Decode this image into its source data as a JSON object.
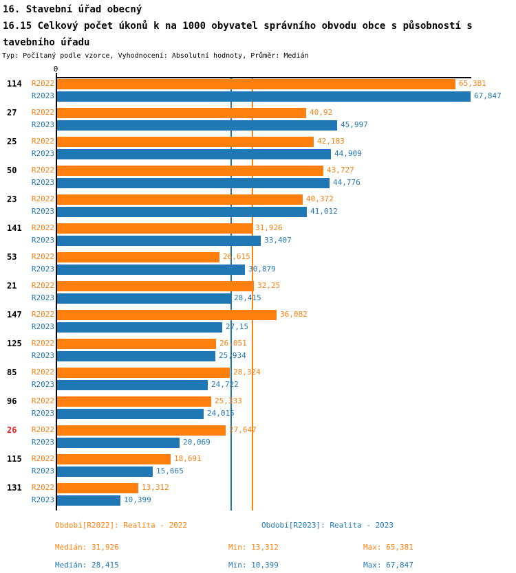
{
  "header": {
    "line1": "16. Stavební úřad obecný",
    "line2": "16.15 Celkový počet úkonů k na 1000 obyvatel správního obvodu obce s působností s",
    "line3": "tavebního úřadu",
    "meta": "Typ: Počítaný podle vzorce, Vyhodnocení: Absolutní hodnoty, Průměr: Medián"
  },
  "chart_data": {
    "type": "bar",
    "orientation": "horizontal",
    "title": "16.15 Celkový počet úkonů k na 1000 obyvatel správního obvodu obce s působností stavebního úřadu",
    "grid": false,
    "legend_position": "bottom",
    "axis": {
      "zero_label": "0",
      "min": 0,
      "max": 68
    },
    "series_labels": {
      "r2022": "R2022",
      "r2023": "R2023"
    },
    "colors": {
      "r2022": "#FF7F0E",
      "r2023": "#1F77B4",
      "highlight_category": "#ED1C24",
      "category": "#000000",
      "axis": "#000000"
    },
    "reference_lines": [
      {
        "name": "median-line-2023",
        "label": "Medián R2023",
        "value": 28.415,
        "color": "#1F77B4"
      },
      {
        "name": "median-line-2022",
        "label": "Medián R2022",
        "value": 31.926,
        "color": "#FF7F0E"
      }
    ],
    "rows": [
      {
        "category": "114",
        "highlight": false,
        "r2022": {
          "value": 65.381,
          "label": "65,381"
        },
        "r2023": {
          "value": 67.847,
          "label": "67,847"
        }
      },
      {
        "category": "27",
        "highlight": false,
        "r2022": {
          "value": 40.92,
          "label": "40,92"
        },
        "r2023": {
          "value": 45.997,
          "label": "45,997"
        }
      },
      {
        "category": "25",
        "highlight": false,
        "r2022": {
          "value": 42.183,
          "label": "42,183"
        },
        "r2023": {
          "value": 44.909,
          "label": "44,909"
        }
      },
      {
        "category": "50",
        "highlight": false,
        "r2022": {
          "value": 43.727,
          "label": "43,727"
        },
        "r2023": {
          "value": 44.776,
          "label": "44,776"
        }
      },
      {
        "category": "23",
        "highlight": false,
        "r2022": {
          "value": 40.372,
          "label": "40,372"
        },
        "r2023": {
          "value": 41.012,
          "label": "41,012"
        }
      },
      {
        "category": "141",
        "highlight": false,
        "r2022": {
          "value": 31.926,
          "label": "31,926"
        },
        "r2023": {
          "value": 33.407,
          "label": "33,407"
        }
      },
      {
        "category": "53",
        "highlight": false,
        "r2022": {
          "value": 26.615,
          "label": "26,615"
        },
        "r2023": {
          "value": 30.879,
          "label": "30,879"
        }
      },
      {
        "category": "21",
        "highlight": false,
        "r2022": {
          "value": 32.25,
          "label": "32,25"
        },
        "r2023": {
          "value": 28.415,
          "label": "28,415"
        }
      },
      {
        "category": "147",
        "highlight": false,
        "r2022": {
          "value": 36.082,
          "label": "36,082"
        },
        "r2023": {
          "value": 27.15,
          "label": "27,15"
        }
      },
      {
        "category": "125",
        "highlight": false,
        "r2022": {
          "value": 26.051,
          "label": "26,051"
        },
        "r2023": {
          "value": 25.934,
          "label": "25,934"
        }
      },
      {
        "category": "85",
        "highlight": false,
        "r2022": {
          "value": 28.324,
          "label": "28,324"
        },
        "r2023": {
          "value": 24.722,
          "label": "24,722"
        }
      },
      {
        "category": "96",
        "highlight": false,
        "r2022": {
          "value": 25.333,
          "label": "25,333"
        },
        "r2023": {
          "value": 24.015,
          "label": "24,015"
        }
      },
      {
        "category": "26",
        "highlight": true,
        "r2022": {
          "value": 27.647,
          "label": "27,647"
        },
        "r2023": {
          "value": 20.069,
          "label": "20,069"
        }
      },
      {
        "category": "115",
        "highlight": false,
        "r2022": {
          "value": 18.691,
          "label": "18,691"
        },
        "r2023": {
          "value": 15.665,
          "label": "15,665"
        }
      },
      {
        "category": "131",
        "highlight": false,
        "r2022": {
          "value": 13.312,
          "label": "13,312"
        },
        "r2023": {
          "value": 10.399,
          "label": "10,399"
        }
      }
    ]
  },
  "footer": {
    "legend_r2022": "Období[R2022]: Realita - 2022",
    "legend_r2023": "Období[R2023]: Realita - 2023",
    "stats_r2022": {
      "median": "Medián: 31,926",
      "min": "Min: 13,312",
      "max": "Max: 65,381"
    },
    "stats_r2023": {
      "median": "Medián: 28,415",
      "min": "Min: 10,399",
      "max": "Max: 67,847"
    }
  }
}
